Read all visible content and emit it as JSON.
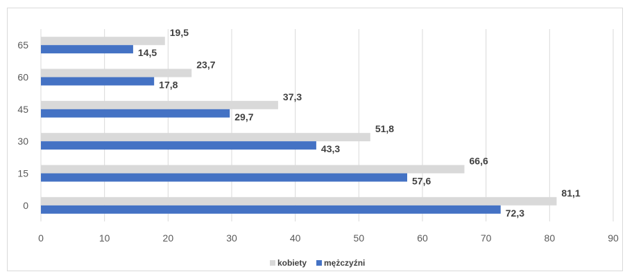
{
  "chart_data": {
    "type": "bar",
    "orientation": "horizontal",
    "categories": [
      "0",
      "15",
      "30",
      "45",
      "60",
      "65"
    ],
    "series": [
      {
        "name": "kobiety",
        "color": "#d9d9d9",
        "values": [
          81.1,
          66.6,
          51.8,
          37.3,
          23.7,
          19.5
        ],
        "labels": [
          "81,1",
          "66,6",
          "51,8",
          "37,3",
          "23,7",
          "19,5"
        ]
      },
      {
        "name": "mężczyźni",
        "color": "#4472c4",
        "values": [
          72.3,
          57.6,
          43.3,
          29.7,
          17.8,
          14.5
        ],
        "labels": [
          "72,3",
          "57,6",
          "43,3",
          "29,7",
          "17,8",
          "14,5"
        ]
      }
    ],
    "xticks": [
      "0",
      "10",
      "20",
      "30",
      "40",
      "50",
      "60",
      "70",
      "80",
      "90"
    ],
    "xlim": [
      0,
      90
    ],
    "grid": "vertical",
    "legend": "bottom"
  }
}
